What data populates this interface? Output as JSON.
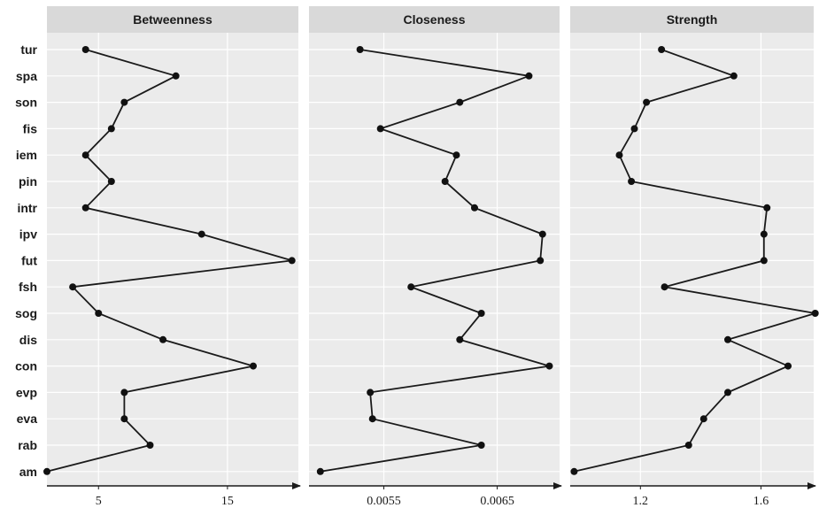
{
  "chart_data": {
    "type": "line",
    "categories": [
      "tur",
      "spa",
      "son",
      "fis",
      "iem",
      "pin",
      "intr",
      "ipv",
      "fut",
      "fsh",
      "sog",
      "dis",
      "con",
      "evp",
      "eva",
      "rab",
      "am"
    ],
    "panels": [
      {
        "title": "Betweenness",
        "xlim": [
          1,
          20.5
        ],
        "ticks": [
          {
            "value": 5,
            "label": "5"
          },
          {
            "value": 15,
            "label": "15"
          }
        ],
        "values": [
          4,
          11,
          7,
          6,
          4,
          6,
          4,
          13,
          20,
          3,
          5,
          10,
          17,
          7,
          7,
          9,
          1
        ]
      },
      {
        "title": "Closeness",
        "xlim": [
          0.00484,
          0.00705
        ],
        "ticks": [
          {
            "value": 0.0055,
            "label": "0.0055"
          },
          {
            "value": 0.0065,
            "label": "0.0065"
          }
        ],
        "values": [
          0.00529,
          0.00678,
          0.00617,
          0.00547,
          0.00614,
          0.00604,
          0.0063,
          0.0069,
          0.00688,
          0.00574,
          0.00636,
          0.00617,
          0.00696,
          0.00538,
          0.0054,
          0.00636,
          0.00494
        ]
      },
      {
        "title": "Strength",
        "xlim": [
          0.967,
          1.775
        ],
        "ticks": [
          {
            "value": 1.2,
            "label": "1.2"
          },
          {
            "value": 1.6,
            "label": "1.6"
          }
        ],
        "values": [
          1.27,
          1.51,
          1.22,
          1.18,
          1.13,
          1.17,
          1.62,
          1.61,
          1.61,
          1.28,
          1.78,
          1.49,
          1.69,
          1.49,
          1.41,
          1.36,
          0.98
        ]
      }
    ]
  }
}
